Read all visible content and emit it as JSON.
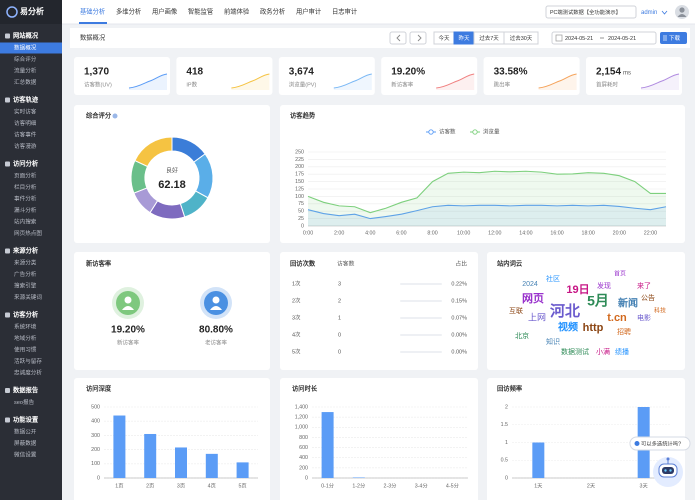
{
  "sidebar": {
    "logo": "易分析",
    "active": [
      0,
      0
    ],
    "groups": [
      {
        "title": "网站概况",
        "items": [
          "数据概况",
          "综合评分",
          "流量分析",
          "汇总数据"
        ]
      },
      {
        "title": "访客轨迹",
        "items": [
          "实时访客",
          "访客明细",
          "访客事件",
          "访客漫游"
        ]
      },
      {
        "title": "访问分析",
        "items": [
          "页面分析",
          "栏目分析",
          "事件分析",
          "漏斗分析",
          "站内搜索",
          "网页热点图"
        ]
      },
      {
        "title": "来源分析",
        "items": [
          "来源分类",
          "广告分析",
          "搜索引擎",
          "来源关键词"
        ]
      },
      {
        "title": "访客分析",
        "items": [
          "系统环境",
          "地域分析",
          "使用习惯",
          "活跃与留存",
          "忠诚度分析"
        ]
      },
      {
        "title": "数据报告",
        "items": [
          "seo报告"
        ]
      },
      {
        "title": "功能设置",
        "items": [
          "数据公开",
          "屏蔽数据",
          "微信设置"
        ]
      }
    ]
  },
  "topnav": {
    "items": [
      "基础分析",
      "多维分析",
      "用户画像",
      "智能监管",
      "前端体验",
      "政务分析",
      "用户审计",
      "日志审计"
    ],
    "active": 0,
    "site": "PC端测试数据【全功能演示】",
    "user": "admin"
  },
  "toolbar": {
    "title": "数据概况",
    "ranges": [
      "今天",
      "昨天",
      "过去7天",
      "过去30天"
    ],
    "active_range": 1,
    "date_from": "2024-05-21",
    "date_to": "2024-05-21",
    "download": "下载"
  },
  "kpis": [
    {
      "value": "1,370",
      "label": "访客数(UV)",
      "color": "#5b9cf6"
    },
    {
      "value": "418",
      "label": "IP数",
      "color": "#f5c342"
    },
    {
      "value": "3,674",
      "label": "浏览量(PV)",
      "color": "#7ab8f5"
    },
    {
      "value": "19.20%",
      "label": "新访客率",
      "color": "#f08080"
    },
    {
      "value": "33.58%",
      "label": "跳出率",
      "color": "#f5a35b"
    },
    {
      "value": "2,154",
      "unit": "ms",
      "label": "首屏耗时",
      "color": "#b08be0"
    }
  ],
  "new_visitor": {
    "title": "新访客率",
    "items": [
      {
        "value": "19.20%",
        "label": "新访客率",
        "color": "#7ec87e"
      },
      {
        "value": "80.80%",
        "label": "老访客率",
        "color": "#4a90e2"
      }
    ]
  },
  "revisit_table": {
    "headers": [
      "回访次数",
      "访客数",
      "占比"
    ],
    "rows": [
      [
        "1次",
        3,
        "0.22%"
      ],
      [
        "2次",
        2,
        "0.15%"
      ],
      [
        "3次",
        1,
        "0.07%"
      ],
      [
        "4次",
        0,
        "0.00%"
      ],
      [
        "5次",
        0,
        "0.00%"
      ]
    ]
  },
  "word_cloud": {
    "title": "站内词云",
    "words": [
      "河北",
      "5月",
      "19日",
      "视频",
      "http",
      "t.cn",
      "新闻",
      "网页",
      "上网",
      "数据测试",
      "小满",
      "绩播",
      "公告",
      "招聘",
      "2024",
      "发现",
      "电影",
      "北京",
      "来了",
      "社区",
      "互联",
      "科技",
      "知识",
      "首页"
    ]
  },
  "help": {
    "text": "可以多选统计吗?"
  },
  "chart_data": [
    {
      "type": "donut",
      "title": "综合评分",
      "center_label": "良好",
      "center_value": 62.18,
      "values": [
        15,
        18,
        12,
        14,
        10,
        13,
        18
      ],
      "colors": [
        "#3b7dd8",
        "#5aaee8",
        "#4fb3c8",
        "#7e6bbf",
        "#a89ad6",
        "#6abf8a",
        "#f5c342"
      ]
    },
    {
      "type": "line",
      "title": "访客趋势",
      "categories": [
        "0:00",
        null,
        "2:00",
        null,
        "4:00",
        null,
        "6:00",
        null,
        "8:00",
        null,
        "10:00",
        null,
        "12:00",
        null,
        "14:00",
        null,
        "16:00",
        null,
        "18:00",
        null,
        "20:00",
        null,
        "22:00",
        null
      ],
      "series": [
        {
          "name": "访客数",
          "color": "#5b9cf6",
          "values": [
            55,
            42,
            35,
            40,
            25,
            32,
            40,
            52,
            65,
            70,
            68,
            70,
            70,
            68,
            70,
            70,
            68,
            70,
            68,
            70,
            66,
            60,
            55,
            65
          ]
        },
        {
          "name": "浏览量",
          "color": "#7ed07e",
          "values": [
            100,
            80,
            68,
            65,
            45,
            60,
            80,
            95,
            150,
            178,
            182,
            180,
            185,
            183,
            185,
            182,
            175,
            176,
            180,
            178,
            170,
            150,
            110,
            110
          ]
        }
      ],
      "ylim": [
        0,
        250
      ],
      "yticks": [
        0,
        25,
        50,
        75,
        100,
        125,
        150,
        175,
        200,
        225,
        250
      ],
      "grid": true
    },
    {
      "type": "bar",
      "title": "访问深度",
      "categories": [
        "1页",
        "2页",
        "3页",
        "4页",
        "5页"
      ],
      "values": [
        440,
        310,
        215,
        170,
        110
      ],
      "color": "#5b9cf6",
      "ylim": [
        0,
        500
      ],
      "yticks": [
        0,
        100,
        200,
        300,
        400,
        500
      ],
      "grid": true
    },
    {
      "type": "bar",
      "title": "访问时长",
      "categories": [
        "0-1分",
        "1-2分",
        "2-3分",
        "3-4分",
        "4-5分"
      ],
      "values": [
        1300,
        10,
        0,
        0,
        0
      ],
      "color": "#5b9cf6",
      "ylim": [
        0,
        1400
      ],
      "yticks": [
        0,
        200,
        400,
        600,
        800,
        {
          "value": 1000,
          "label": "1,000"
        },
        {
          "value": 1200,
          "label": "1,200"
        },
        {
          "value": 1400,
          "label": "1,400"
        }
      ],
      "grid": true
    },
    {
      "type": "bar",
      "title": "回访频率",
      "categories": [
        "1天",
        "2天",
        "3天"
      ],
      "values": [
        1,
        0,
        2
      ],
      "color": "#5b9cf6",
      "ylim": [
        0,
        2
      ],
      "yticks": [
        0,
        0.5,
        1,
        1.5,
        2
      ],
      "grid": true
    }
  ]
}
